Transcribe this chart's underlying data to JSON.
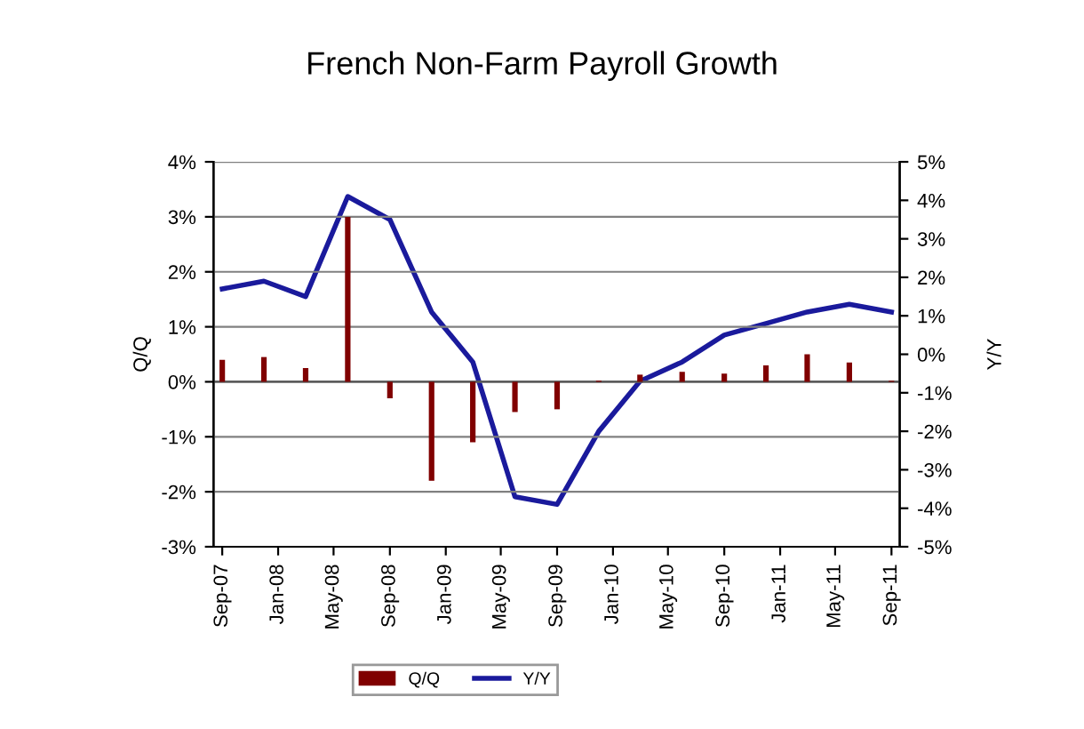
{
  "chart_data": {
    "type": "bar",
    "title": "French Non-Farm Payroll Growth",
    "ylabel": "Q/Q",
    "y2label": "Y/Y",
    "x": [
      "2007-09",
      "2007-12",
      "2008-03",
      "2008-06",
      "2008-09",
      "2008-12",
      "2009-03",
      "2009-06",
      "2009-09",
      "2009-12",
      "2010-03",
      "2010-06",
      "2010-09",
      "2010-12",
      "2011-03",
      "2011-06",
      "2011-09"
    ],
    "series": [
      {
        "name": "Q/Q",
        "color": "#800000",
        "values": [
          0.4,
          0.45,
          0.25,
          3.0,
          -0.3,
          -1.8,
          -1.1,
          -0.55,
          -0.5,
          0.02,
          0.13,
          0.18,
          0.15,
          0.3,
          0.5,
          0.35,
          0.02
        ]
      },
      {
        "name": "Y/Y",
        "type": "line",
        "axis": "y2",
        "color": "#1a1a9c",
        "values": [
          1.7,
          1.9,
          1.5,
          4.1,
          3.5,
          1.1,
          -0.2,
          -3.7,
          -3.9,
          -2.0,
          -0.7,
          -0.2,
          0.5,
          0.8,
          1.1,
          1.3,
          1.1
        ]
      }
    ],
    "xlim": [
      "2007-08-13",
      "2011-09-19"
    ],
    "xticks": [
      {
        "value": "2007-09",
        "label": "Sep-07"
      },
      {
        "value": "2008-01",
        "label": "Jan-08"
      },
      {
        "value": "2008-05",
        "label": "May-08"
      },
      {
        "value": "2008-09",
        "label": "Sep-08"
      },
      {
        "value": "2009-01",
        "label": "Jan-09"
      },
      {
        "value": "2009-05",
        "label": "May-09"
      },
      {
        "value": "2009-09",
        "label": "Sep-09"
      },
      {
        "value": "2010-01",
        "label": "Jan-10"
      },
      {
        "value": "2010-05",
        "label": "May-10"
      },
      {
        "value": "2010-09",
        "label": "Sep-10"
      },
      {
        "value": "2011-01",
        "label": "Jan-11"
      },
      {
        "value": "2011-05",
        "label": "May-11"
      },
      {
        "value": "2011-09",
        "label": "Sep-11"
      }
    ],
    "ylim": [
      -3,
      4
    ],
    "yticks": [
      {
        "value": -3,
        "label": "-3%"
      },
      {
        "value": -2,
        "label": "-2%"
      },
      {
        "value": -1,
        "label": "-1%"
      },
      {
        "value": 0,
        "label": "0%"
      },
      {
        "value": 1,
        "label": "1%"
      },
      {
        "value": 2,
        "label": "2%"
      },
      {
        "value": 3,
        "label": "3%"
      },
      {
        "value": 4,
        "label": "4%"
      }
    ],
    "y2lim": [
      -5,
      5
    ],
    "y2ticks": [
      {
        "value": -5,
        "label": "-5%"
      },
      {
        "value": -4,
        "label": "-4%"
      },
      {
        "value": -3,
        "label": "-3%"
      },
      {
        "value": -2,
        "label": "-2%"
      },
      {
        "value": -1,
        "label": "-1%"
      },
      {
        "value": 0,
        "label": "0%"
      },
      {
        "value": 1,
        "label": "1%"
      },
      {
        "value": 2,
        "label": "2%"
      },
      {
        "value": 3,
        "label": "3%"
      },
      {
        "value": 4,
        "label": "4%"
      },
      {
        "value": 5,
        "label": "5%"
      }
    ],
    "grid": "y",
    "legend": "bottom",
    "marker": "none",
    "line_style": "solid"
  }
}
